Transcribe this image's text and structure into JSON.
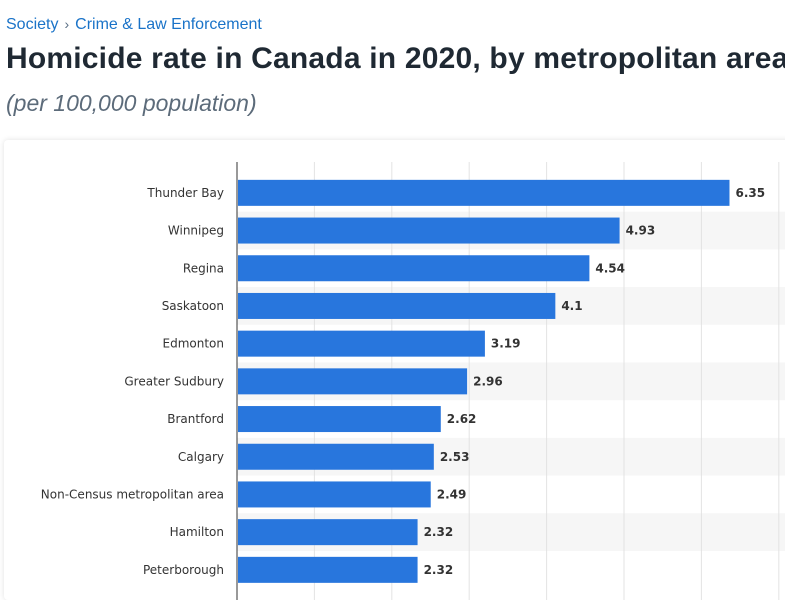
{
  "breadcrumb": {
    "items": [
      "Society",
      "Crime & Law Enforcement"
    ],
    "separator": "›"
  },
  "page_title": "Homicide rate in Canada in 2020, by metropolitan area",
  "page_subtitle": "(per 100,000 population)",
  "colors": {
    "bar": "#2876dd",
    "link": "#1a73c8",
    "stripe": "#f6f6f6",
    "grid": "#e3e3e3",
    "axis": "#333333"
  },
  "chart_data": {
    "type": "bar",
    "orientation": "horizontal",
    "title": "",
    "xlabel": "",
    "ylabel": "",
    "xlim": [
      0,
      7
    ],
    "grid": true,
    "categories": [
      "Thunder Bay",
      "Winnipeg",
      "Regina",
      "Saskatoon",
      "Edmonton",
      "Greater Sudbury",
      "Brantford",
      "Calgary",
      "Non-Census metropolitan area",
      "Hamilton",
      "Peterborough"
    ],
    "values": [
      6.35,
      4.93,
      4.54,
      4.1,
      3.19,
      2.96,
      2.62,
      2.53,
      2.49,
      2.32,
      2.32
    ],
    "value_labels": [
      "6.35",
      "4.93",
      "4.54",
      "4.1",
      "3.19",
      "2.96",
      "2.62",
      "2.53",
      "2.49",
      "2.32",
      "2.32"
    ]
  }
}
